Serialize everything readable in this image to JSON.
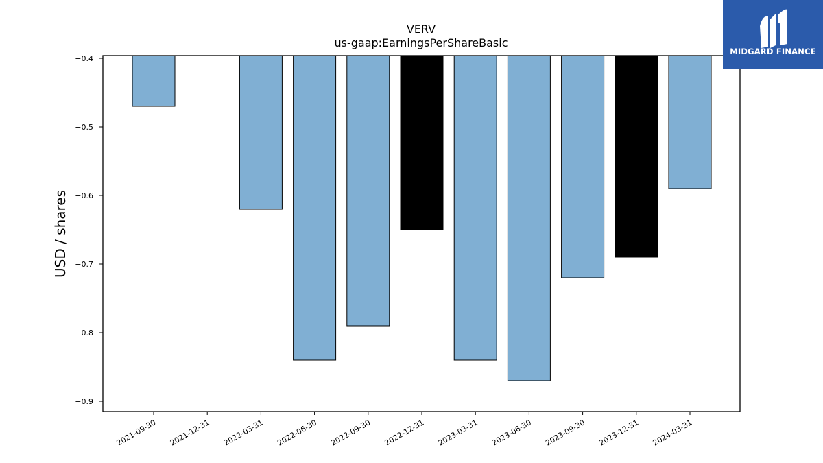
{
  "chart_data": {
    "type": "bar",
    "title": "VERV",
    "subtitle": "us-gaap:EarningsPerShareBasic",
    "xlabel": "",
    "ylabel": "USD / shares",
    "ylim": [
      -0.915,
      -0.396
    ],
    "yticks": [
      -0.4,
      -0.5,
      -0.6,
      -0.7,
      -0.8,
      -0.9
    ],
    "ytick_labels": [
      "−0.4",
      "−0.5",
      "−0.6",
      "−0.7",
      "−0.8",
      "−0.9"
    ],
    "grid": false,
    "categories": [
      "2021-09-30",
      "2021-12-31",
      "2022-03-31",
      "2022-06-30",
      "2022-09-30",
      "2022-12-31",
      "2023-03-31",
      "2023-06-30",
      "2023-09-30",
      "2023-12-31",
      "2024-03-31"
    ],
    "values": [
      -0.47,
      null,
      -0.62,
      -0.84,
      -0.79,
      -0.65,
      -0.84,
      -0.87,
      -0.72,
      -0.69,
      -0.59
    ],
    "bar_colors": [
      "#80afd3",
      null,
      "#80afd3",
      "#80afd3",
      "#80afd3",
      "#000000",
      "#80afd3",
      "#80afd3",
      "#80afd3",
      "#000000",
      "#80afd3"
    ]
  },
  "watermark": {
    "text": "MIDGARD FINANCE",
    "background": "#2b5bab",
    "icon": "midgard-logo-icon"
  }
}
